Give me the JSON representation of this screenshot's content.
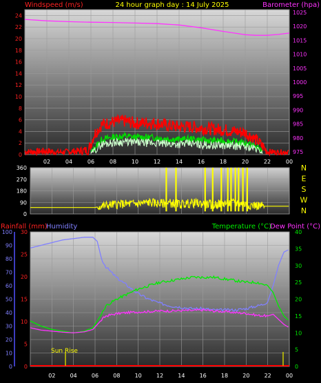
{
  "chart_data": [
    {
      "type": "line",
      "title": "24 hour graph day : 14 July 2025",
      "ylabel": "Windspeed (m/s)",
      "ylabel_right": "Barometer (hpa)",
      "ylim": [
        0,
        25
      ],
      "y2lim": [
        974,
        1026
      ],
      "x_ticks": [
        "02",
        "04",
        "06",
        "08",
        "10",
        "12",
        "14",
        "16",
        "18",
        "20",
        "22",
        "00"
      ],
      "y_ticks": [
        "0",
        "2",
        "4",
        "6",
        "8",
        "10",
        "12",
        "14",
        "16",
        "18",
        "20",
        "22",
        "24"
      ],
      "y2_ticks": [
        "975",
        "980",
        "985",
        "990",
        "995",
        "1000",
        "1005",
        "1010",
        "1015",
        "1020",
        "1025"
      ],
      "grid": true,
      "series": [
        {
          "name": "Barometer",
          "color": "#ff33ff",
          "axis": "right",
          "x": [
            0,
            2,
            4,
            6,
            8,
            10,
            12,
            14,
            16,
            18,
            19,
            20,
            21,
            22,
            23,
            24
          ],
          "values": [
            1022.5,
            1022,
            1021.7,
            1021.5,
            1021.4,
            1021.2,
            1021,
            1020.5,
            1019.5,
            1018.2,
            1017.6,
            1017,
            1016.8,
            1016.8,
            1017.1,
            1017.6
          ]
        },
        {
          "color": "#ff0000",
          "x": [
            0,
            1,
            2,
            3,
            4,
            5,
            5.8,
            6.3,
            7,
            8,
            9,
            10,
            11,
            12,
            13,
            14,
            15,
            16,
            17,
            18,
            19,
            20,
            21,
            21.7,
            22,
            23,
            24
          ],
          "values": [
            0.5,
            0.5,
            0.6,
            0.4,
            0.5,
            0.6,
            0.8,
            3.5,
            5.2,
            5.6,
            5.8,
            5.4,
            5.5,
            5.4,
            5.0,
            4.8,
            4.8,
            4.6,
            4.4,
            4.3,
            4.0,
            3.8,
            2.5,
            1.2,
            0.5,
            0.4,
            0.5
          ]
        },
        {
          "color": "#00dd00",
          "x": [
            6,
            6.5,
            7,
            8,
            9,
            10,
            11,
            12,
            13,
            14,
            15,
            16,
            17,
            18,
            19,
            20,
            21,
            21.6
          ],
          "values": [
            0.4,
            1.5,
            2.6,
            3.0,
            3.2,
            3.0,
            3.0,
            2.9,
            2.7,
            2.6,
            2.7,
            2.5,
            2.4,
            2.3,
            2.2,
            2.0,
            1.4,
            0.5
          ]
        },
        {
          "color": "#ccffcc",
          "x": [
            6,
            6.5,
            7,
            8,
            9,
            10,
            11,
            12,
            13,
            14,
            15,
            16,
            17,
            18,
            19,
            20,
            21,
            21.6
          ],
          "values": [
            0.2,
            1.0,
            1.8,
            2.1,
            2.2,
            2.1,
            2.0,
            2.0,
            1.8,
            1.8,
            1.9,
            1.7,
            1.6,
            1.6,
            1.5,
            1.4,
            1.0,
            0.3
          ]
        }
      ]
    },
    {
      "type": "line",
      "ylim": [
        0,
        360
      ],
      "y_ticks": [
        "0",
        "90",
        "180",
        "270",
        "360"
      ],
      "y2_ticks": [
        "N",
        "W",
        "S",
        "E",
        "N"
      ],
      "grid": true,
      "series": [
        {
          "color": "#ffff00",
          "x": [
            0,
            6,
            6.5,
            8,
            10,
            11,
            12,
            13,
            14,
            15,
            16,
            17,
            18,
            19,
            20,
            21,
            21.7,
            22,
            24
          ],
          "values": [
            50,
            50,
            60,
            75,
            80,
            90,
            80,
            85,
            75,
            85,
            80,
            70,
            85,
            85,
            75,
            65,
            60,
            60,
            60
          ]
        }
      ]
    },
    {
      "type": "line",
      "ylabel": "Rainfall (mm)",
      "ylabel2": "Humidity",
      "ylabel_right": "Temperature (°C)",
      "ylabel_right2": "Dew Point (°C)",
      "ylim": [
        0,
        100
      ],
      "y_ticks_humidity": [
        "0",
        "10",
        "20",
        "30",
        "40",
        "50",
        "60",
        "70",
        "80",
        "90",
        "100"
      ],
      "y_ticks_rain": [
        "0",
        "5",
        "10",
        "15",
        "20",
        "25",
        "30"
      ],
      "y2lim": [
        0,
        40
      ],
      "y2_ticks": [
        "0",
        "5",
        "10",
        "15",
        "20",
        "25",
        "30",
        "35",
        "40"
      ],
      "x_ticks": [
        "02",
        "04",
        "06",
        "08",
        "10",
        "12",
        "14",
        "16",
        "18",
        "20",
        "22",
        "00"
      ],
      "annotations": [
        "Sun Rise"
      ],
      "grid": true,
      "series": [
        {
          "name": "Humidity",
          "color": "#8080ff",
          "x": [
            0,
            1,
            2,
            3,
            4,
            5,
            5.8,
            6.2,
            6.6,
            7,
            8,
            9,
            10,
            11,
            12,
            13,
            14,
            15,
            16,
            17,
            18,
            19,
            20,
            21,
            21.5,
            22,
            22.5,
            23,
            23.5,
            24
          ],
          "values": [
            88,
            90,
            92,
            94,
            95,
            96,
            96,
            93,
            80,
            74,
            66,
            60,
            54,
            50,
            47,
            45,
            44,
            43,
            43,
            42,
            42,
            42,
            43,
            45,
            46,
            48,
            60,
            75,
            85,
            87
          ]
        },
        {
          "name": "Temperature",
          "color": "#00ee00",
          "x": [
            0,
            1,
            2,
            3,
            4,
            5,
            5.8,
            6.5,
            7,
            8,
            9,
            10,
            11,
            12,
            13,
            14,
            15,
            16,
            17,
            18,
            19,
            20,
            21,
            22,
            22.5,
            23,
            23.5,
            24
          ],
          "values": [
            13.5,
            12,
            11,
            10.5,
            10,
            10.5,
            11.5,
            15,
            18,
            20,
            21.5,
            23,
            24,
            25,
            25.5,
            26,
            26.5,
            26.5,
            26.5,
            26,
            25.5,
            25,
            25,
            24,
            22,
            18,
            15,
            13.5
          ]
        },
        {
          "name": "Dew Point",
          "color": "#ff33ff",
          "x": [
            0,
            1,
            2,
            3,
            4,
            5,
            5.8,
            6.5,
            7,
            8,
            9,
            10,
            11,
            12,
            13,
            14,
            15,
            16,
            17,
            18,
            19,
            20,
            21,
            22,
            22.5,
            23,
            23.5,
            24
          ],
          "values": [
            11.5,
            10.8,
            10.5,
            10.2,
            10,
            10.3,
            11,
            13.5,
            15,
            15.7,
            16,
            16.2,
            16.3,
            16.5,
            16.5,
            16.6,
            16.6,
            16.8,
            16.5,
            16.3,
            16,
            15.8,
            15.2,
            15,
            15.5,
            14,
            12.5,
            11.5
          ]
        },
        {
          "name": "Rainfall",
          "color": "#ff0000",
          "x": [
            0,
            24
          ],
          "values": [
            0,
            0
          ]
        }
      ]
    }
  ]
}
